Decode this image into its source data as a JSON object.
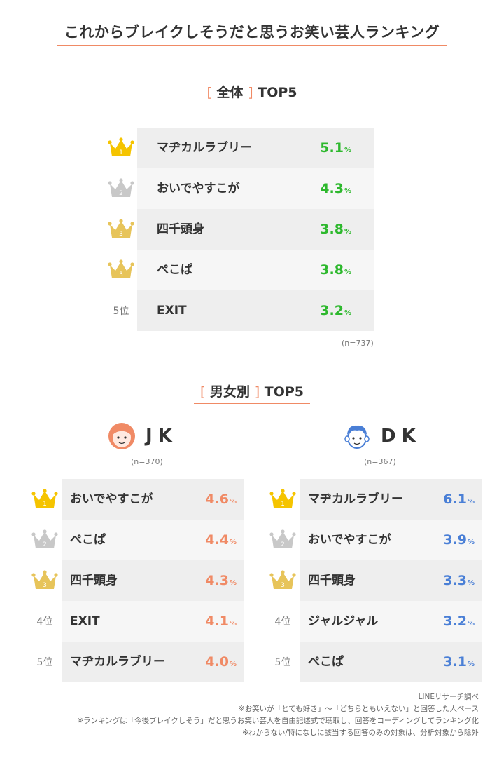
{
  "title": "これからブレイクしそうだと思うお笑い芸人ランキング",
  "overall": {
    "heading_bracket_open": "[",
    "heading_word": "全体",
    "heading_bracket_close": "]",
    "heading_suffix": "TOP5",
    "n_note": "(n=737)",
    "rows": [
      {
        "rank": "1",
        "name": "マヂカルラブリー",
        "value": "5.1",
        "unit": "%"
      },
      {
        "rank": "2",
        "name": "おいでやすこが",
        "value": "4.3",
        "unit": "%"
      },
      {
        "rank": "3",
        "name": "四千頭身",
        "value": "3.8",
        "unit": "%"
      },
      {
        "rank": "3",
        "name": "ぺこぱ",
        "value": "3.8",
        "unit": "%"
      },
      {
        "rank": "5位",
        "name": "EXIT",
        "value": "3.2",
        "unit": "%"
      }
    ]
  },
  "gender": {
    "heading_bracket_open": "[",
    "heading_word": "男女別",
    "heading_bracket_close": "]",
    "heading_suffix": "TOP5",
    "jk": {
      "label": "JK",
      "n_note": "(n=370)",
      "rows": [
        {
          "rank": "1",
          "name": "おいでやすこが",
          "value": "4.6",
          "unit": "%"
        },
        {
          "rank": "2",
          "name": "ぺこぱ",
          "value": "4.4",
          "unit": "%"
        },
        {
          "rank": "3",
          "name": "四千頭身",
          "value": "4.3",
          "unit": "%"
        },
        {
          "rank": "4位",
          "name": "EXIT",
          "value": "4.1",
          "unit": "%"
        },
        {
          "rank": "5位",
          "name": "マヂカルラブリー",
          "value": "4.0",
          "unit": "%"
        }
      ]
    },
    "dk": {
      "label": "DK",
      "n_note": "(n=367)",
      "rows": [
        {
          "rank": "1",
          "name": "マヂカルラブリー",
          "value": "6.1",
          "unit": "%"
        },
        {
          "rank": "2",
          "name": "おいでやすこが",
          "value": "3.9",
          "unit": "%"
        },
        {
          "rank": "3",
          "name": "四千頭身",
          "value": "3.3",
          "unit": "%"
        },
        {
          "rank": "4位",
          "name": "ジャルジャル",
          "value": "3.2",
          "unit": "%"
        },
        {
          "rank": "5位",
          "name": "ぺこぱ",
          "value": "3.1",
          "unit": "%"
        }
      ]
    }
  },
  "footer": [
    "LINEリサーチ調べ",
    "※お笑いが「とても好き」〜「どちらともいえない」と回答した人ベース",
    "※ランキングは「今後ブレイクしそう」だと思うお笑い芸人を自由記述式で聴取し、回答をコーディングしてランキング化",
    "※わからない/特になしに該当する回答のみの対象は、分析対象から除外"
  ],
  "colors": {
    "accent": "#f08a65",
    "overall_value": "#2db82d",
    "jk_value": "#f08a65",
    "dk_value": "#4a7fd6",
    "gold": "#f5c400",
    "silver": "#c8c8c8",
    "bronze": "#e7c45a"
  },
  "chart_data": [
    {
      "type": "table",
      "title": "[全体] TOP5",
      "categories": [
        "マヂカルラブリー",
        "おいでやすこが",
        "四千頭身",
        "ぺこぱ",
        "EXIT"
      ],
      "values": [
        5.1,
        4.3,
        3.8,
        3.8,
        3.2
      ]
    },
    {
      "type": "table",
      "title": "JK",
      "categories": [
        "おいでやすこが",
        "ぺこぱ",
        "四千頭身",
        "EXIT",
        "マヂカルラブリー"
      ],
      "values": [
        4.6,
        4.4,
        4.3,
        4.1,
        4.0
      ]
    },
    {
      "type": "table",
      "title": "DK",
      "categories": [
        "マヂカルラブリー",
        "おいでやすこが",
        "四千頭身",
        "ジャルジャル",
        "ぺこぱ"
      ],
      "values": [
        6.1,
        3.9,
        3.3,
        3.2,
        3.1
      ]
    }
  ]
}
